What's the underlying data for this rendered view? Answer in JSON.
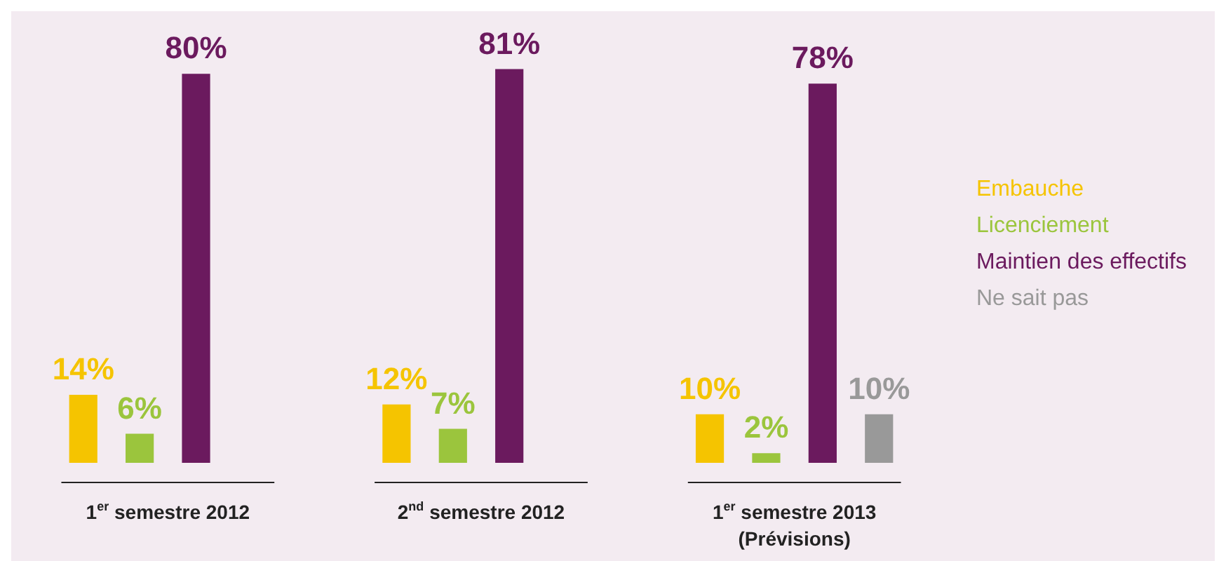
{
  "chart_data": {
    "type": "bar",
    "categories": [
      "1$^{er}$ semestre 2012",
      "2$^{nd}$ semestre 2012",
      "1$^{er}$ semestre 2013\n(Prévisions)"
    ],
    "series": [
      {
        "name": "Embauche",
        "color": "#f5c400",
        "values": [
          14,
          12,
          10
        ],
        "value_labels": [
          "14%",
          "12%",
          "10%"
        ]
      },
      {
        "name": "Licenciement",
        "color": "#9bc53d",
        "values": [
          6,
          7,
          2
        ],
        "value_labels": [
          "6%",
          "7%",
          "2%"
        ]
      },
      {
        "name": "Maintien des effectifs",
        "color": "#6b1a5e",
        "values": [
          80,
          81,
          78
        ],
        "value_labels": [
          "80%",
          "81%",
          "78%"
        ]
      },
      {
        "name": "Ne sait pas",
        "color": "#999999",
        "values": [
          null,
          null,
          10
        ],
        "value_labels": [
          null,
          null,
          "10%"
        ]
      }
    ],
    "legend": "right"
  }
}
